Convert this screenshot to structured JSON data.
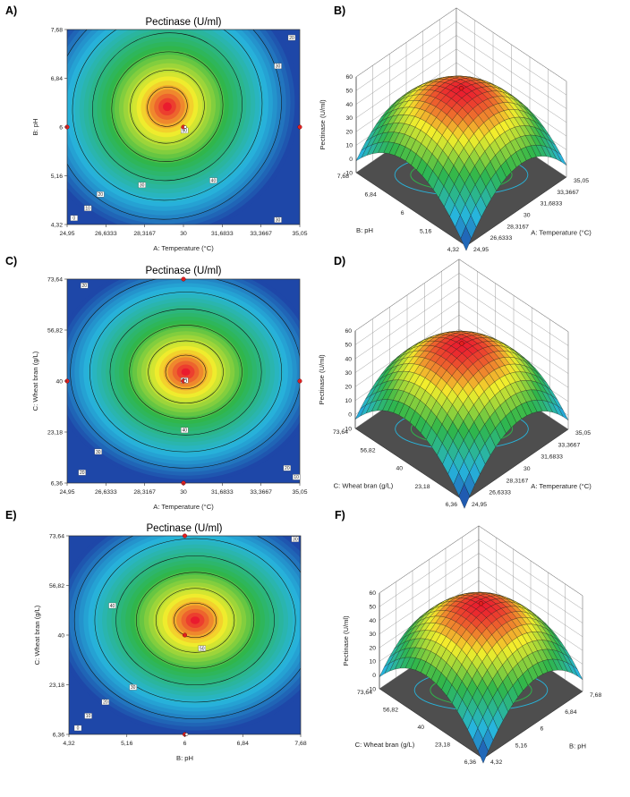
{
  "chart_data": [
    {
      "panel": "A)",
      "type": "contour",
      "title": "Pectinase (U/ml)",
      "xlabel": "A: Temperature (°C)",
      "ylabel": "B: pH",
      "xticks": [
        "24,95",
        "26,6333",
        "28,3167",
        "30",
        "31,6833",
        "33,3667",
        "35,05"
      ],
      "yticks": [
        "4,32",
        "5,16",
        "6",
        "6,84",
        "7,68"
      ],
      "xlim": [
        24.95,
        35.05
      ],
      "ylim": [
        4.32,
        7.68
      ],
      "optimum": {
        "x": 29.3,
        "y": 6.35
      },
      "contour_levels": [
        0,
        10,
        20,
        30,
        40,
        50
      ],
      "contour_labels": [
        {
          "text": "20",
          "x": 34.7,
          "y": 7.54
        },
        {
          "text": "30",
          "x": 34.1,
          "y": 7.05
        },
        {
          "text": "50",
          "x": 30.05,
          "y": 5.94
        },
        {
          "text": "40",
          "x": 31.3,
          "y": 5.08
        },
        {
          "text": "30",
          "x": 34.1,
          "y": 4.4
        },
        {
          "text": "30",
          "x": 28.2,
          "y": 5.0
        },
        {
          "text": "20",
          "x": 26.4,
          "y": 4.84
        },
        {
          "text": "10",
          "x": 25.85,
          "y": 4.6
        },
        {
          "text": "0",
          "x": 25.25,
          "y": 4.43
        }
      ],
      "points": [
        {
          "x": 24.95,
          "y": 6
        },
        {
          "x": 35.05,
          "y": 6
        },
        {
          "x": 30,
          "y": 6
        }
      ]
    },
    {
      "panel": "B)",
      "type": "surface3d",
      "zlabel": "Pectinase (U/ml)",
      "zticks": [
        "-10",
        "0",
        "10",
        "20",
        "30",
        "40",
        "50",
        "60"
      ],
      "zlim": [
        -10,
        60
      ],
      "xlabel": "A: Temperature (°C)",
      "xticks": [
        "24,95",
        "26,6333",
        "28,3167",
        "30",
        "31,6833",
        "33,3667",
        "35,05"
      ],
      "ylabel": "B: pH",
      "yticks": [
        "4,32",
        "5,16",
        "6",
        "6,84",
        "7,68"
      ],
      "peak": 52
    },
    {
      "panel": "C)",
      "type": "contour",
      "title": "Pectinase (U/ml)",
      "xlabel": "A: Temperature (°C)",
      "ylabel": "C: Wheat bran (g/L)",
      "xticks": [
        "24,95",
        "26,6333",
        "28,3167",
        "30",
        "31,6833",
        "33,3667",
        "35,05"
      ],
      "yticks": [
        "6,36",
        "23,18",
        "40",
        "56,82",
        "73,64"
      ],
      "xlim": [
        24.95,
        35.05
      ],
      "ylim": [
        6.36,
        73.64
      ],
      "optimum": {
        "x": 30.1,
        "y": 43
      },
      "contour_levels": [
        10,
        20,
        30,
        40,
        50
      ],
      "contour_labels": [
        {
          "text": "20",
          "x": 25.7,
          "y": 71.5
        },
        {
          "text": "50",
          "x": 30.05,
          "y": 40.2
        },
        {
          "text": "40",
          "x": 30.05,
          "y": 23.8
        },
        {
          "text": "30",
          "x": 26.3,
          "y": 16.7
        },
        {
          "text": "20",
          "x": 25.6,
          "y": 9.8
        },
        {
          "text": "20",
          "x": 34.5,
          "y": 11.3
        },
        {
          "text": "10",
          "x": 34.9,
          "y": 8.3
        }
      ],
      "points": [
        {
          "x": 30,
          "y": 73.64
        },
        {
          "x": 24.95,
          "y": 40
        },
        {
          "x": 35.05,
          "y": 40
        },
        {
          "x": 30,
          "y": 40
        },
        {
          "x": 30,
          "y": 6.36
        }
      ]
    },
    {
      "panel": "D)",
      "type": "surface3d",
      "zlabel": "Pectinase (U/ml)",
      "zticks": [
        "-10",
        "0",
        "10",
        "20",
        "30",
        "40",
        "50",
        "60"
      ],
      "zlim": [
        -10,
        60
      ],
      "xlabel": "A: Temperature (°C)",
      "xticks": [
        "24,95",
        "26,6333",
        "28,3167",
        "30",
        "31,6833",
        "33,3667",
        "35,05"
      ],
      "ylabel": "C: Wheat bran (g/L)",
      "yticks": [
        "6,36",
        "23,18",
        "40",
        "56,82",
        "73,64"
      ],
      "peak": 50
    },
    {
      "panel": "E)",
      "type": "contour",
      "title": "Pectinase (U/ml)",
      "xlabel": "B: pH",
      "ylabel": "C: Wheat bran (g/L)",
      "xticks": [
        "4,32",
        "5,16",
        "6",
        "6,84",
        "7,68"
      ],
      "yticks": [
        "6,36",
        "23,18",
        "40",
        "56,82",
        "73,64"
      ],
      "xlim": [
        4.32,
        7.68
      ],
      "ylim": [
        6.36,
        73.64
      ],
      "optimum": {
        "x": 6.15,
        "y": 45
      },
      "contour_levels": [
        0,
        10,
        20,
        30,
        40,
        50
      ],
      "contour_labels": [
        {
          "text": "30",
          "x": 7.6,
          "y": 72.5
        },
        {
          "text": "40",
          "x": 4.95,
          "y": 50
        },
        {
          "text": "50",
          "x": 6.25,
          "y": 35.5
        },
        {
          "text": "30",
          "x": 5.25,
          "y": 22.3
        },
        {
          "text": "20",
          "x": 4.85,
          "y": 17.3
        },
        {
          "text": "10",
          "x": 4.6,
          "y": 12.6
        },
        {
          "text": "0",
          "x": 4.45,
          "y": 8.5
        }
      ],
      "points": [
        {
          "x": 6,
          "y": 73.64
        },
        {
          "x": 6,
          "y": 40
        },
        {
          "x": 6,
          "y": 6.36
        }
      ]
    },
    {
      "panel": "F)",
      "type": "surface3d",
      "zlabel": "Pectinase (U/ml)",
      "zticks": [
        "-10",
        "0",
        "10",
        "20",
        "30",
        "40",
        "50",
        "60"
      ],
      "zlim": [
        -10,
        60
      ],
      "xlabel": "B: pH",
      "xticks": [
        "4,32",
        "5,16",
        "6",
        "6,84",
        "7,68"
      ],
      "ylabel": "C: Wheat bran (g/L)",
      "yticks": [
        "6,36",
        "23,18",
        "40",
        "56,82",
        "73,64"
      ],
      "peak": 52
    }
  ],
  "colors": {
    "red": "#ea1b2e",
    "yellow": "#f4ee2c",
    "green": "#2fb64b",
    "cyan": "#27b5dc",
    "blue": "#1e47a8",
    "floor": "#4e4e4e"
  }
}
